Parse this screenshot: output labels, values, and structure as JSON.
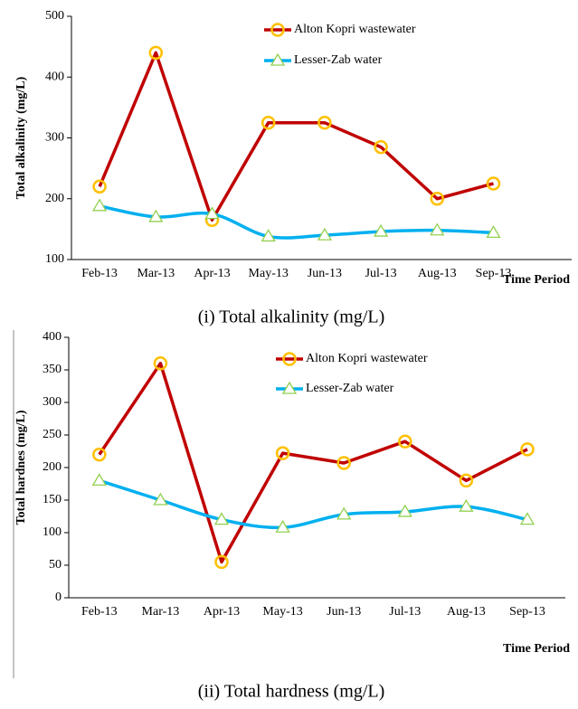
{
  "chart_data": [
    {
      "type": "line",
      "ylabel": "Total alkalinity (mg/L)",
      "xlabel": "Time Period",
      "caption": "(i) Total alkalinity (mg/L)",
      "categories": [
        "Feb-13",
        "Mar-13",
        "Apr-13",
        "May-13",
        "Jun-13",
        "Jul-13",
        "Aug-13",
        "Sep-13"
      ],
      "ylim": [
        100,
        500
      ],
      "yticks": [
        100,
        200,
        300,
        400,
        500
      ],
      "series": [
        {
          "name": "Alton Kopri wastewater",
          "color": "#c00000",
          "marker_color": "#ffc000",
          "marker": "circle",
          "smooth": false,
          "values": [
            220,
            440,
            165,
            325,
            325,
            285,
            200,
            225
          ]
        },
        {
          "name": "Lesser-Zab water",
          "color": "#00b0f0",
          "marker_color": "#92d050",
          "marker": "triangle",
          "smooth": true,
          "values": [
            188,
            170,
            175,
            138,
            140,
            146,
            148,
            144
          ]
        }
      ]
    },
    {
      "type": "line",
      "ylabel": "Total hardnes (mg/L)",
      "xlabel": "Time Period",
      "caption": "(ii) Total hardness (mg/L)",
      "categories": [
        "Feb-13",
        "Mar-13",
        "Apr-13",
        "May-13",
        "Jun-13",
        "Jul-13",
        "Aug-13",
        "Sep-13"
      ],
      "ylim": [
        0,
        400
      ],
      "yticks": [
        0,
        50,
        100,
        150,
        200,
        250,
        300,
        350,
        400
      ],
      "series": [
        {
          "name": "Alton Kopri wastewater",
          "color": "#c00000",
          "marker_color": "#ffc000",
          "marker": "circle",
          "smooth": false,
          "values": [
            220,
            360,
            55,
            222,
            207,
            240,
            180,
            228
          ]
        },
        {
          "name": "Lesser-Zab water",
          "color": "#00b0f0",
          "marker_color": "#92d050",
          "marker": "triangle",
          "smooth": true,
          "values": [
            180,
            150,
            120,
            108,
            128,
            132,
            140,
            120
          ]
        }
      ]
    }
  ]
}
